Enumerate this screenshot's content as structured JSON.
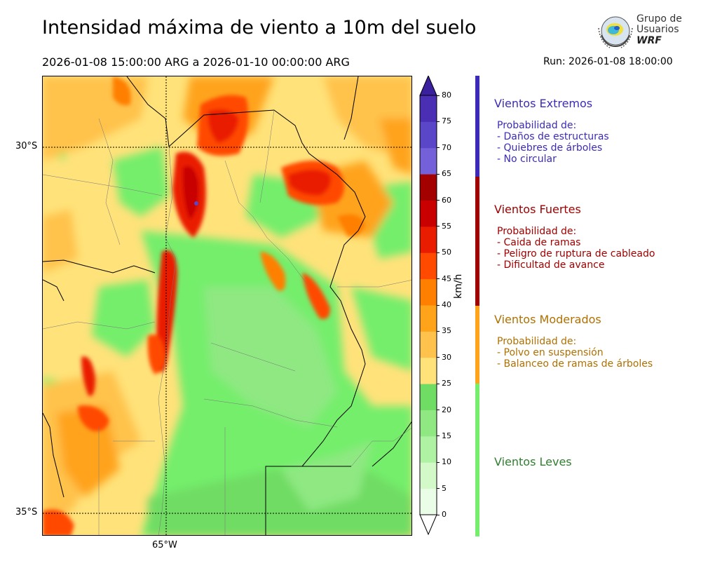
{
  "title": "Intensidad máxima de viento a 10m del suelo",
  "period": "2026-01-08 15:00:00 ARG  a  2026-01-10 00:00:00 ARG",
  "run": "Run: 2026-01-08 18:00:00",
  "logo": {
    "line1": "Grupo de",
    "line2": "Usuarios",
    "line3": "WRF"
  },
  "map": {
    "lat_labels": [
      "30°S",
      "35°S"
    ],
    "lon_labels": [
      "65°W"
    ]
  },
  "colorbar": {
    "unit": "km/h",
    "ticks": [
      "0",
      "5",
      "10",
      "15",
      "20",
      "25",
      "30",
      "35",
      "40",
      "45",
      "50",
      "55",
      "60",
      "65",
      "70",
      "75",
      "80"
    ],
    "colors": [
      "#eafde6",
      "#d3f9c9",
      "#b0f2a4",
      "#8fe882",
      "#6fdc63",
      "#ffe27a",
      "#ffc24c",
      "#ffa31a",
      "#ff7f00",
      "#ff4a00",
      "#ea1c00",
      "#c80000",
      "#a30000",
      "#7460d8",
      "#5a46c8",
      "#4a2fb5"
    ],
    "extend_max_color": "#3a1f9f"
  },
  "categories": [
    {
      "name": "Vientos Extremos",
      "color": "#3b2bb8",
      "bar": "#3b2bb8",
      "lines": [
        "Probabilidad de:",
        "- Daños de estructuras",
        "- Quiebres de árboles",
        "- No circular"
      ]
    },
    {
      "name": "Vientos Fuertes",
      "color": "#a00000",
      "bar": "#a00000",
      "lines": [
        "Probabilidad de:",
        "- Caida de ramas",
        "- Peligro de ruptura de cableado",
        "- Dificultad de avance"
      ]
    },
    {
      "name": "Vientos Moderados",
      "color": "#b07000",
      "bar": "#ffa31a",
      "lines": [
        "Probabilidad de:",
        "- Polvo en suspensión",
        "- Balanceo de ramas de árboles"
      ]
    },
    {
      "name": "Vientos Leves",
      "color": "#2f7f2f",
      "bar": "#74ee6c",
      "lines": []
    }
  ]
}
